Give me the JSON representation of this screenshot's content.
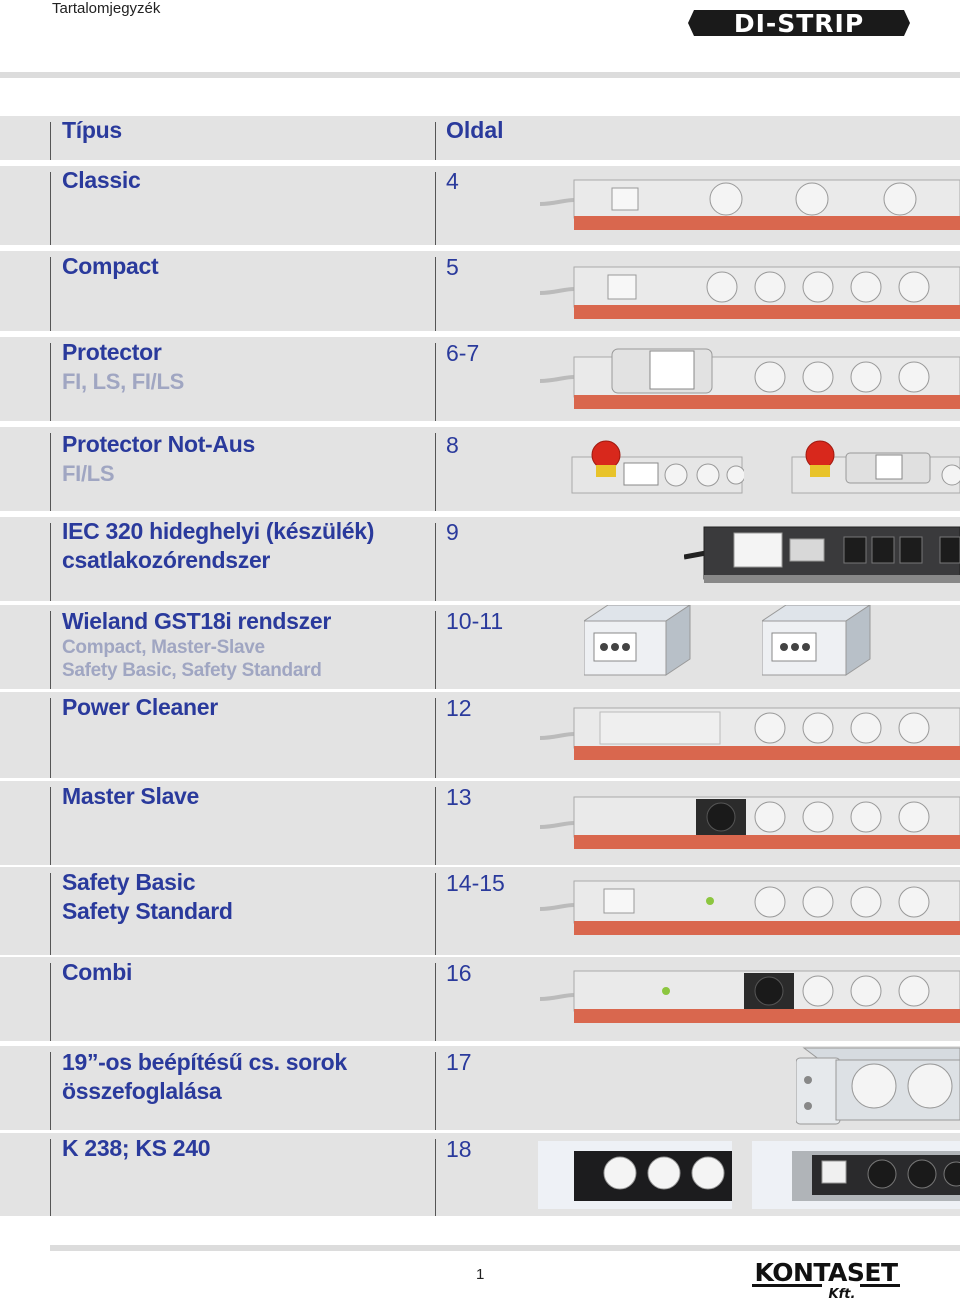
{
  "header": {
    "title": "Tartalomjegyzék",
    "brand": "DI-STRIP"
  },
  "table": {
    "head": {
      "type": "Típus",
      "page": "Oldal"
    },
    "rows": [
      {
        "title": "Classic",
        "page": "4"
      },
      {
        "title": "Compact",
        "page": "5"
      },
      {
        "title": "Protector",
        "sub": "FI, LS, FI/LS",
        "page": "6-7"
      },
      {
        "title": "Protector Not-Aus",
        "sub": "FI/LS",
        "page": "8"
      },
      {
        "title_line1": "IEC 320 hideghelyi (készülék)",
        "title_line2": "csatlakozórendszer",
        "page": "9"
      },
      {
        "title": "Wieland GST18i rendszer",
        "sub1": "Compact, Master-Slave",
        "sub2": "Safety Basic, Safety Standard",
        "page": "10-11"
      },
      {
        "title": "Power Cleaner",
        "page": "12"
      },
      {
        "title": "Master Slave",
        "page": "13"
      },
      {
        "title_line1": "Safety Basic",
        "title_line2": "Safety Standard",
        "page": "14-15"
      },
      {
        "title": "Combi",
        "page": "16"
      },
      {
        "title_line1": "19”-os beépítésű cs. sorok",
        "title_line2": "összefoglalása",
        "page": "17"
      },
      {
        "title": "K 238; KS 240",
        "page": "18"
      }
    ]
  },
  "footer": {
    "page_number": "1",
    "brand": "KONTASET",
    "brand_sub": "Kft."
  },
  "colors": {
    "accent": "#2a3a9c",
    "sub": "#a0a6c2",
    "row_bg": "#e3e3e3",
    "strip_red": "#d9674e"
  }
}
